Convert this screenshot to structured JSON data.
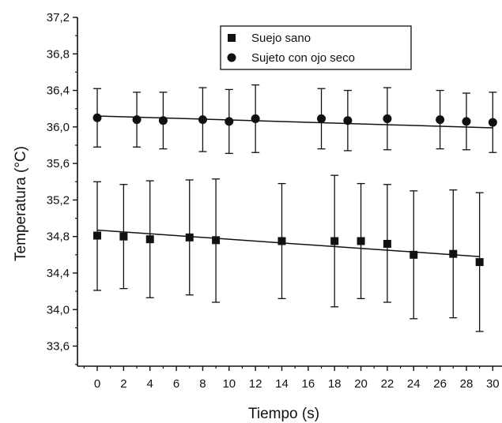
{
  "chart_data": {
    "type": "scatter",
    "xlabel": "Tiempo (s)",
    "ylabel": "Temperatura (°C)",
    "xlim": [
      -1.5,
      30.7
    ],
    "ylim": [
      33.38,
      37.2
    ],
    "x_ticks": [
      0,
      2,
      4,
      6,
      8,
      10,
      12,
      14,
      16,
      18,
      20,
      22,
      24,
      26,
      28,
      30
    ],
    "y_ticks": [
      {
        "value": 33.6,
        "label": "33,6"
      },
      {
        "value": 34.0,
        "label": "34,0"
      },
      {
        "value": 34.4,
        "label": "34,4"
      },
      {
        "value": 34.8,
        "label": "34,8"
      },
      {
        "value": 35.2,
        "label": "35,2"
      },
      {
        "value": 35.6,
        "label": "35,6"
      },
      {
        "value": 36.0,
        "label": "36,0"
      },
      {
        "value": 36.4,
        "label": "36,4"
      },
      {
        "value": 36.8,
        "label": "36,8"
      },
      {
        "value": 37.2,
        "label": "37,2"
      }
    ],
    "legend_position": "top-right",
    "grid": false,
    "series": [
      {
        "name": "Suejo sano",
        "marker": "square",
        "x": [
          0,
          2,
          4,
          7,
          9,
          14,
          18,
          20,
          22,
          24,
          27,
          29
        ],
        "y": [
          34.81,
          34.8,
          34.77,
          34.79,
          34.76,
          34.75,
          34.75,
          34.75,
          34.72,
          34.6,
          34.61,
          34.52
        ],
        "err_low": [
          34.21,
          34.23,
          34.13,
          34.16,
          34.08,
          34.12,
          34.03,
          34.12,
          34.08,
          33.9,
          33.91,
          33.76
        ],
        "err_high": [
          35.4,
          35.37,
          35.41,
          35.42,
          35.43,
          35.38,
          35.47,
          35.38,
          35.37,
          35.3,
          35.31,
          35.28
        ],
        "fit": {
          "x": [
            0,
            29
          ],
          "y": [
            34.87,
            34.58
          ]
        }
      },
      {
        "name": "Sujeto con ojo seco",
        "marker": "circle",
        "x": [
          0,
          3,
          5,
          8,
          10,
          12,
          17,
          19,
          22,
          26,
          28,
          30
        ],
        "y": [
          36.1,
          36.08,
          36.07,
          36.08,
          36.06,
          36.09,
          36.09,
          36.07,
          36.09,
          36.08,
          36.06,
          36.05
        ],
        "err_low": [
          35.78,
          35.78,
          35.76,
          35.73,
          35.71,
          35.72,
          35.76,
          35.74,
          35.75,
          35.76,
          35.75,
          35.72
        ],
        "err_high": [
          36.42,
          36.38,
          36.38,
          36.43,
          36.41,
          36.46,
          36.42,
          36.4,
          36.43,
          36.4,
          36.37,
          36.38
        ],
        "fit": {
          "x": [
            0,
            30
          ],
          "y": [
            36.12,
            35.99
          ]
        }
      }
    ]
  },
  "colors": {
    "ink": "#111111",
    "background": "#ffffff"
  }
}
